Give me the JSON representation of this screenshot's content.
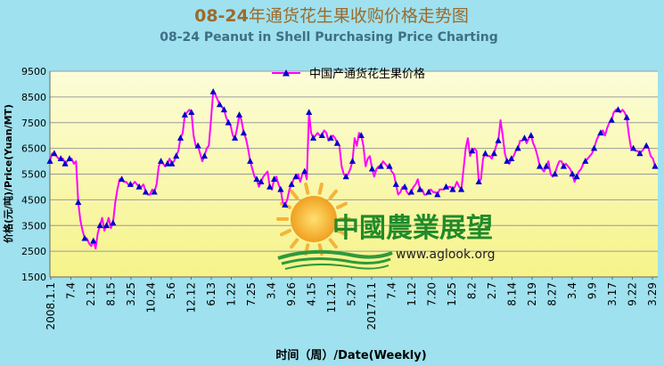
{
  "chart_data": {
    "type": "line",
    "title": "08-24年通货花生果收购价格走势图",
    "title_prefix": "08-24",
    "title_rest": "年通货花生果收购价格走势图",
    "subtitle": "08-24 Peanut in Shell Purchasing Price Charting",
    "ylabel": "价格(元/吨)/Price(Yuan/MT)",
    "xlabel": "时间（周）/Date(Weekly)",
    "ylim": [
      1500,
      9500
    ],
    "yticks": [
      1500,
      2500,
      3500,
      4500,
      5500,
      6500,
      7500,
      8500,
      9500
    ],
    "xtick_labels": [
      "2008.1.1",
      "7.4",
      "2.12",
      "8.15",
      "3.25",
      "10.24",
      "5.6",
      "12.12",
      "6.13",
      "1.22",
      "7.25",
      "3.4",
      "9.26",
      "4.15",
      "11.21",
      "5.27",
      "2017.1.1",
      "7.4",
      "1.12",
      "7.20",
      "1.25",
      "8.2",
      "2.7",
      "8.14",
      "2.19",
      "8.27",
      "3.4",
      "9.9",
      "3.17",
      "9.22",
      "3.29"
    ],
    "legend": "中国产通货花生果价格",
    "legend_position": "top-center",
    "grid": "horizontal",
    "series": [
      {
        "name": "中国产通货花生果价格",
        "color": "#ff00ff",
        "marker_color": "#0000cc",
        "values": [
          6000,
          6300,
          6300,
          6200,
          6100,
          6100,
          6100,
          5900,
          6000,
          6100,
          6100,
          5900,
          6000,
          4400,
          3700,
          3300,
          3000,
          3000,
          2800,
          2700,
          2900,
          2600,
          3200,
          3500,
          3800,
          3300,
          3500,
          3800,
          3400,
          3600,
          4400,
          4900,
          5300,
          5300,
          5200,
          5200,
          5100,
          5100,
          5100,
          5200,
          5100,
          5000,
          5000,
          5100,
          4800,
          4700,
          4700,
          4900,
          4800,
          5100,
          5800,
          6000,
          5900,
          5800,
          5900,
          6100,
          5900,
          6000,
          6200,
          6400,
          6900,
          7100,
          7800,
          7900,
          8000,
          7900,
          7000,
          6600,
          6600,
          6300,
          6000,
          6200,
          6500,
          6600,
          7600,
          8700,
          8600,
          8400,
          8200,
          8100,
          8000,
          7700,
          7500,
          7400,
          7000,
          6900,
          7300,
          7800,
          7600,
          7100,
          6900,
          6500,
          6000,
          5700,
          5400,
          5300,
          5000,
          5200,
          5400,
          5500,
          5600,
          5000,
          4900,
          5300,
          5400,
          5100,
          4900,
          4400,
          4300,
          4500,
          4900,
          5100,
          5300,
          5400,
          5500,
          5200,
          5500,
          5600,
          5300,
          7900,
          7100,
          6900,
          7000,
          7100,
          7000,
          7000,
          7200,
          7100,
          6800,
          6900,
          7000,
          6900,
          6700,
          6600,
          5800,
          5500,
          5400,
          5500,
          5700,
          6000,
          6900,
          6600,
          7100,
          7000,
          6600,
          5800,
          6100,
          6200,
          5700,
          5400,
          5700,
          5800,
          5800,
          6000,
          5900,
          5800,
          5800,
          5600,
          5500,
          5100,
          4700,
          4800,
          5000,
          5000,
          4800,
          4700,
          4800,
          5000,
          5100,
          5300,
          4900,
          4900,
          4700,
          4700,
          4800,
          4900,
          4800,
          4800,
          4700,
          4900,
          4900,
          4900,
          5000,
          5000,
          5000,
          4900,
          5000,
          5200,
          5000,
          4900,
          5700,
          6500,
          6900,
          6200,
          6400,
          6500,
          6400,
          5200,
          5300,
          6100,
          6300,
          6200,
          6200,
          6100,
          6300,
          6600,
          6800,
          7600,
          7000,
          6300,
          6000,
          5900,
          6100,
          6200,
          6400,
          6500,
          6800,
          6800,
          6900,
          6700,
          6900,
          7000,
          6700,
          6500,
          6200,
          5800,
          5700,
          5600,
          5800,
          6000,
          5500,
          5400,
          5500,
          5800,
          6000,
          6000,
          5800,
          5900,
          5800,
          5700,
          5500,
          5200,
          5400,
          5600,
          5700,
          5900,
          6000,
          6100,
          6200,
          6300,
          6500,
          6800,
          7000,
          7100,
          7200,
          7000,
          7300,
          7500,
          7600,
          7900,
          8000,
          8000,
          7900,
          8000,
          7900,
          7700,
          7000,
          6500,
          6500,
          6400,
          6400,
          6300,
          6400,
          6500,
          6600,
          6500,
          6200,
          6100,
          5800
        ]
      }
    ],
    "marker_indices": [
      0,
      2,
      5,
      7,
      9,
      13,
      16,
      20,
      23,
      26,
      29,
      33,
      37,
      41,
      44,
      48,
      51,
      54,
      56,
      58,
      60,
      62,
      65,
      68,
      71,
      75,
      78,
      80,
      82,
      85,
      87,
      89,
      92,
      95,
      97,
      101,
      103,
      106,
      108,
      111,
      113,
      117,
      119,
      121,
      125,
      129,
      132,
      136,
      139,
      143,
      148,
      152,
      156,
      159,
      163,
      166,
      170,
      174,
      178,
      182,
      185,
      189,
      194,
      197,
      200,
      204,
      206,
      210,
      212,
      215,
      218,
      221,
      225,
      228,
      232,
      236,
      240,
      242,
      246,
      250,
      253,
      258,
      261,
      265,
      268,
      271,
      274,
      278,
      282,
      286,
      290,
      294,
      298,
      301,
      305,
      307
    ]
  },
  "watermark": {
    "brand_cn": "中國農業展望",
    "url": "www.aglook.org"
  }
}
